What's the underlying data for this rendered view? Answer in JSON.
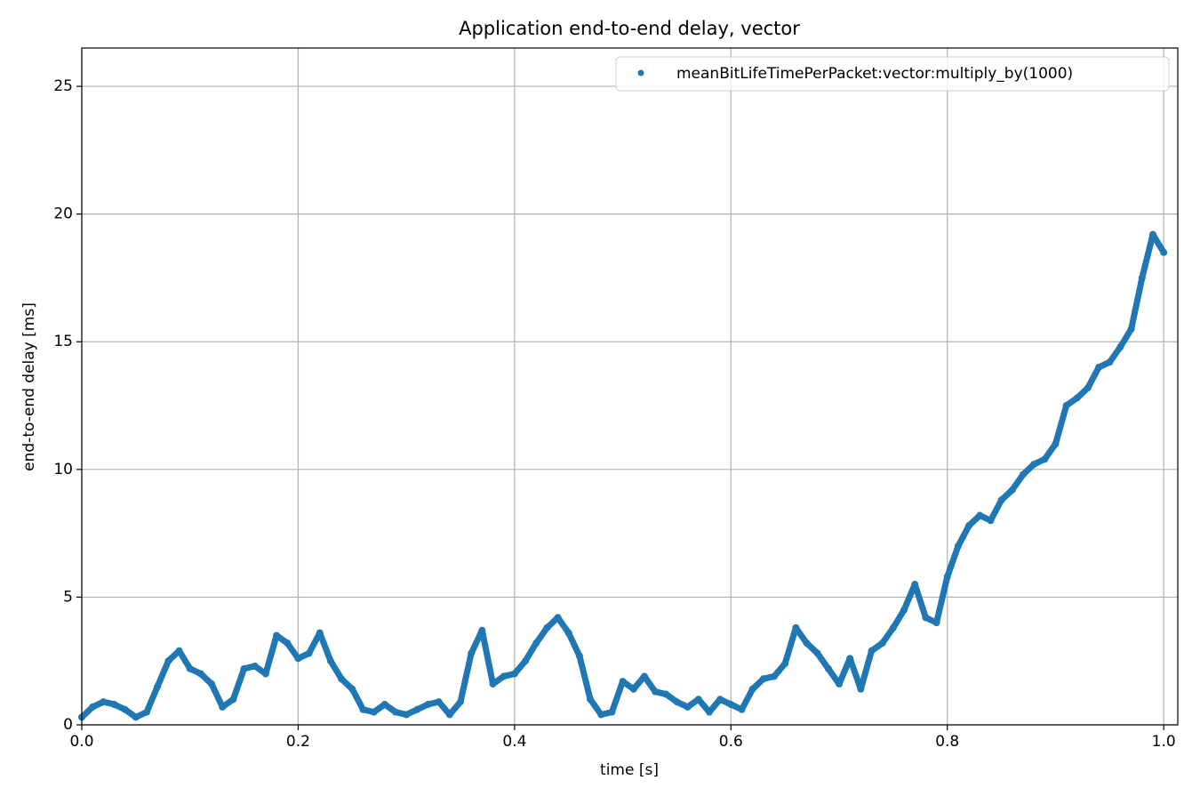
{
  "chart_data": {
    "type": "scatter",
    "title": "Application end-to-end delay, vector",
    "xlabel": "time [s]",
    "ylabel": "end-to-end delay [ms]",
    "x": [
      0.0,
      0.01,
      0.02,
      0.03,
      0.04,
      0.05,
      0.06,
      0.07,
      0.08,
      0.09,
      0.1,
      0.11,
      0.12,
      0.13,
      0.14,
      0.15,
      0.16,
      0.17,
      0.18,
      0.19,
      0.2,
      0.21,
      0.22,
      0.23,
      0.24,
      0.25,
      0.26,
      0.27,
      0.28,
      0.29,
      0.3,
      0.31,
      0.32,
      0.33,
      0.34,
      0.35,
      0.36,
      0.37,
      0.38,
      0.39,
      0.4,
      0.41,
      0.42,
      0.43,
      0.44,
      0.45,
      0.46,
      0.47,
      0.48,
      0.49,
      0.5,
      0.51,
      0.52,
      0.53,
      0.54,
      0.55,
      0.56,
      0.57,
      0.58,
      0.59,
      0.6,
      0.61,
      0.62,
      0.63,
      0.64,
      0.65,
      0.66,
      0.67,
      0.68,
      0.69,
      0.7,
      0.71,
      0.72,
      0.73,
      0.74,
      0.75,
      0.76,
      0.77,
      0.78,
      0.79,
      0.8,
      0.81,
      0.82,
      0.83,
      0.84,
      0.85,
      0.86,
      0.87,
      0.88,
      0.89,
      0.9,
      0.91,
      0.92,
      0.93,
      0.94,
      0.95,
      0.96,
      0.97,
      0.98,
      0.99,
      1.0
    ],
    "series": [
      {
        "name": "meanBitLifeTimePerPacket:vector:multiply_by(1000)",
        "color": "#1f77b4",
        "values": [
          0.3,
          0.7,
          0.9,
          0.8,
          0.6,
          0.3,
          0.5,
          1.5,
          2.5,
          2.9,
          2.2,
          2.0,
          1.6,
          0.7,
          1.0,
          2.2,
          2.3,
          2.0,
          3.5,
          3.2,
          2.6,
          2.8,
          3.6,
          2.5,
          1.8,
          1.4,
          0.6,
          0.5,
          0.8,
          0.5,
          0.4,
          0.6,
          0.8,
          0.9,
          0.4,
          0.9,
          2.8,
          3.7,
          1.6,
          1.9,
          2.0,
          2.5,
          3.2,
          3.8,
          4.2,
          3.6,
          2.7,
          1.0,
          0.4,
          0.5,
          1.7,
          1.4,
          1.9,
          1.3,
          1.2,
          0.9,
          0.7,
          1.0,
          0.5,
          1.0,
          0.8,
          0.6,
          1.4,
          1.8,
          1.9,
          2.4,
          3.8,
          3.2,
          2.8,
          2.2,
          1.6,
          2.6,
          1.4,
          2.9,
          3.2,
          3.8,
          4.5,
          5.5,
          4.2,
          4.0,
          5.8,
          7.0,
          7.8,
          8.2,
          8.0,
          8.8,
          9.2,
          9.8,
          10.2,
          10.4,
          11.0,
          12.5,
          12.8,
          13.2,
          14.0,
          14.2,
          14.8,
          15.5,
          17.5,
          19.2,
          18.5
        ]
      }
    ],
    "xlim": [
      0,
      1.013
    ],
    "ylim": [
      0,
      26.5
    ],
    "xticks": [
      {
        "value": 0,
        "label": "0.0"
      },
      0.2,
      0.4,
      0.6,
      0.8,
      {
        "value": 1,
        "label": "1.0"
      }
    ],
    "yticks": [
      0,
      5,
      10,
      15,
      20,
      25
    ],
    "grid": true,
    "legend": "upper right"
  }
}
